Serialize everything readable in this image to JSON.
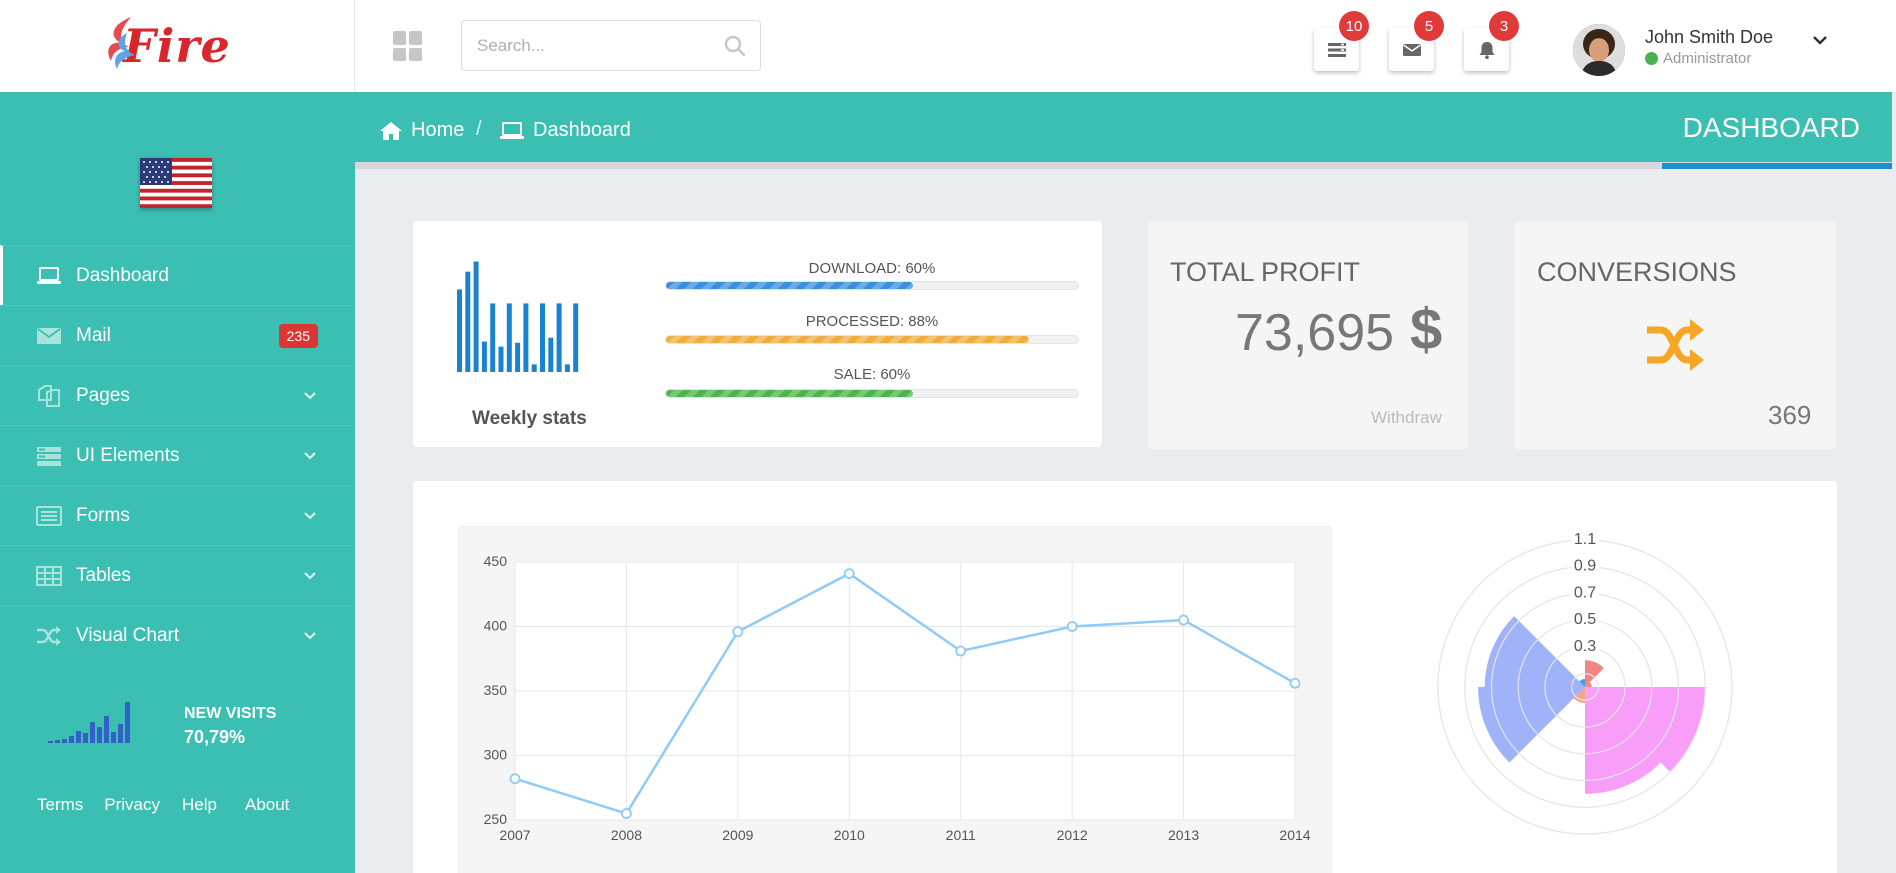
{
  "brand": {
    "logo_text": "Fire"
  },
  "search": {
    "placeholder": "Search..."
  },
  "notifications": {
    "tasks_count": "10",
    "mail_count": "5",
    "alerts_count": "3"
  },
  "user": {
    "name": "John Smith Doe",
    "role": "Administrator"
  },
  "breadcrumb": {
    "home": "Home",
    "separator": "/",
    "current": "Dashboard"
  },
  "page_title": "DASHBOARD",
  "sidebar": {
    "items": [
      {
        "label": "Dashboard",
        "icon": "laptop-icon"
      },
      {
        "label": "Mail",
        "icon": "envelope-icon",
        "badge": "235"
      },
      {
        "label": "Pages",
        "icon": "files-icon"
      },
      {
        "label": "UI Elements",
        "icon": "layers-icon"
      },
      {
        "label": "Forms",
        "icon": "form-icon"
      },
      {
        "label": "Tables",
        "icon": "table-icon"
      },
      {
        "label": "Visual Chart",
        "icon": "shuffle-icon"
      }
    ],
    "visits_title": "NEW VISITS",
    "visits_value": "70,79%",
    "footer": [
      "Terms",
      "Privacy",
      "Help",
      "About"
    ]
  },
  "weekly": {
    "label": "Weekly stats",
    "bars": [
      0.65,
      0.79,
      0.87,
      0.24,
      0.54,
      0.2,
      0.54,
      0.23,
      0.54,
      0.06,
      0.54,
      0.27,
      0.54,
      0.06,
      0.54
    ],
    "progress": [
      {
        "label": "DOWNLOAD: 60%",
        "value": 60,
        "color": "#3b8fd8"
      },
      {
        "label": "PROCESSED: 88%",
        "value": 88,
        "color": "#f0ad3c"
      },
      {
        "label": "SALE: 60%",
        "value": 60,
        "color": "#4cb34f"
      }
    ]
  },
  "profit": {
    "title": "TOTAL PROFIT",
    "value": "73,695",
    "currency": "$",
    "action": "Withdraw"
  },
  "conversions": {
    "title": "CONVERSIONS",
    "value": "369",
    "icon": "shuffle-icon",
    "color": "#f5a623"
  },
  "chart_data": [
    {
      "type": "line",
      "x": [
        "2007",
        "2008",
        "2009",
        "2010",
        "2011",
        "2012",
        "2013",
        "2014"
      ],
      "series": [
        {
          "values": [
            282,
            255,
            396,
            441,
            381,
            400,
            405,
            356
          ]
        }
      ],
      "ylim": [
        250,
        450
      ],
      "yticks": [
        250,
        300,
        350,
        400,
        450
      ],
      "grid": true,
      "color": "#90caf9"
    },
    {
      "type": "polar-area",
      "rticks": [
        "0.3",
        "0.5",
        "0.7",
        "0.9",
        "1.1"
      ],
      "rlim": [
        0.1,
        1.1
      ],
      "sectors": [
        {
          "start_deg": 0,
          "end_deg": 45,
          "r": 0.2,
          "color": "#f26f6f"
        },
        {
          "start_deg": 45,
          "end_deg": 90,
          "r": 0.05,
          "color": "#f26f6f"
        },
        {
          "start_deg": 90,
          "end_deg": 135,
          "r": 0.9,
          "color": "#f78cf7"
        },
        {
          "start_deg": 135,
          "end_deg": 180,
          "r": 0.8,
          "color": "#f78cf7"
        },
        {
          "start_deg": 180,
          "end_deg": 225,
          "r": 0.12,
          "color": "#f29a70"
        },
        {
          "start_deg": 225,
          "end_deg": 270,
          "r": 0.8,
          "color": "#8fa6f7"
        },
        {
          "start_deg": 270,
          "end_deg": 315,
          "r": 0.75,
          "color": "#8fa6f7"
        },
        {
          "start_deg": 315,
          "end_deg": 360,
          "r": 0.06,
          "color": "#1a8fd6"
        }
      ]
    }
  ]
}
